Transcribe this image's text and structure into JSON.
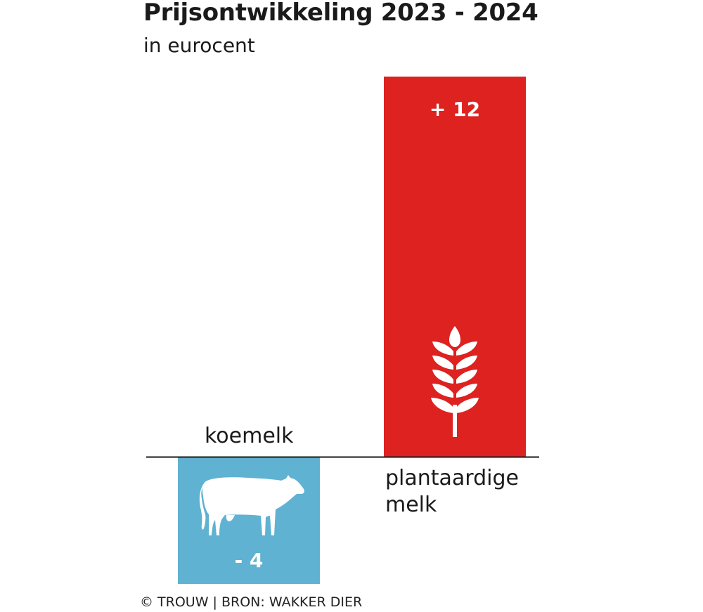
{
  "header": {
    "title": "Prijsontwikkeling 2023 - 2024",
    "subtitle": "in eurocent"
  },
  "footer": {
    "source": "© TROUW | BRON: WAKKER DIER"
  },
  "colors": {
    "positive": "#dd2220",
    "negative": "#5fb2d1",
    "axis": "#1a1a1a"
  },
  "icons": {
    "koemelk": "cow-icon",
    "plantaardige_melk": "wheat-icon"
  },
  "chart_data": {
    "type": "bar",
    "title": "Prijsontwikkeling 2023 - 2024",
    "subtitle": "in eurocent",
    "categories": [
      "koemelk",
      "plantaardige melk"
    ],
    "values": [
      -4,
      12
    ],
    "value_labels": [
      "- 4",
      "+ 12"
    ],
    "ylim": [
      -4,
      12
    ],
    "grid": false,
    "legend": "none"
  }
}
